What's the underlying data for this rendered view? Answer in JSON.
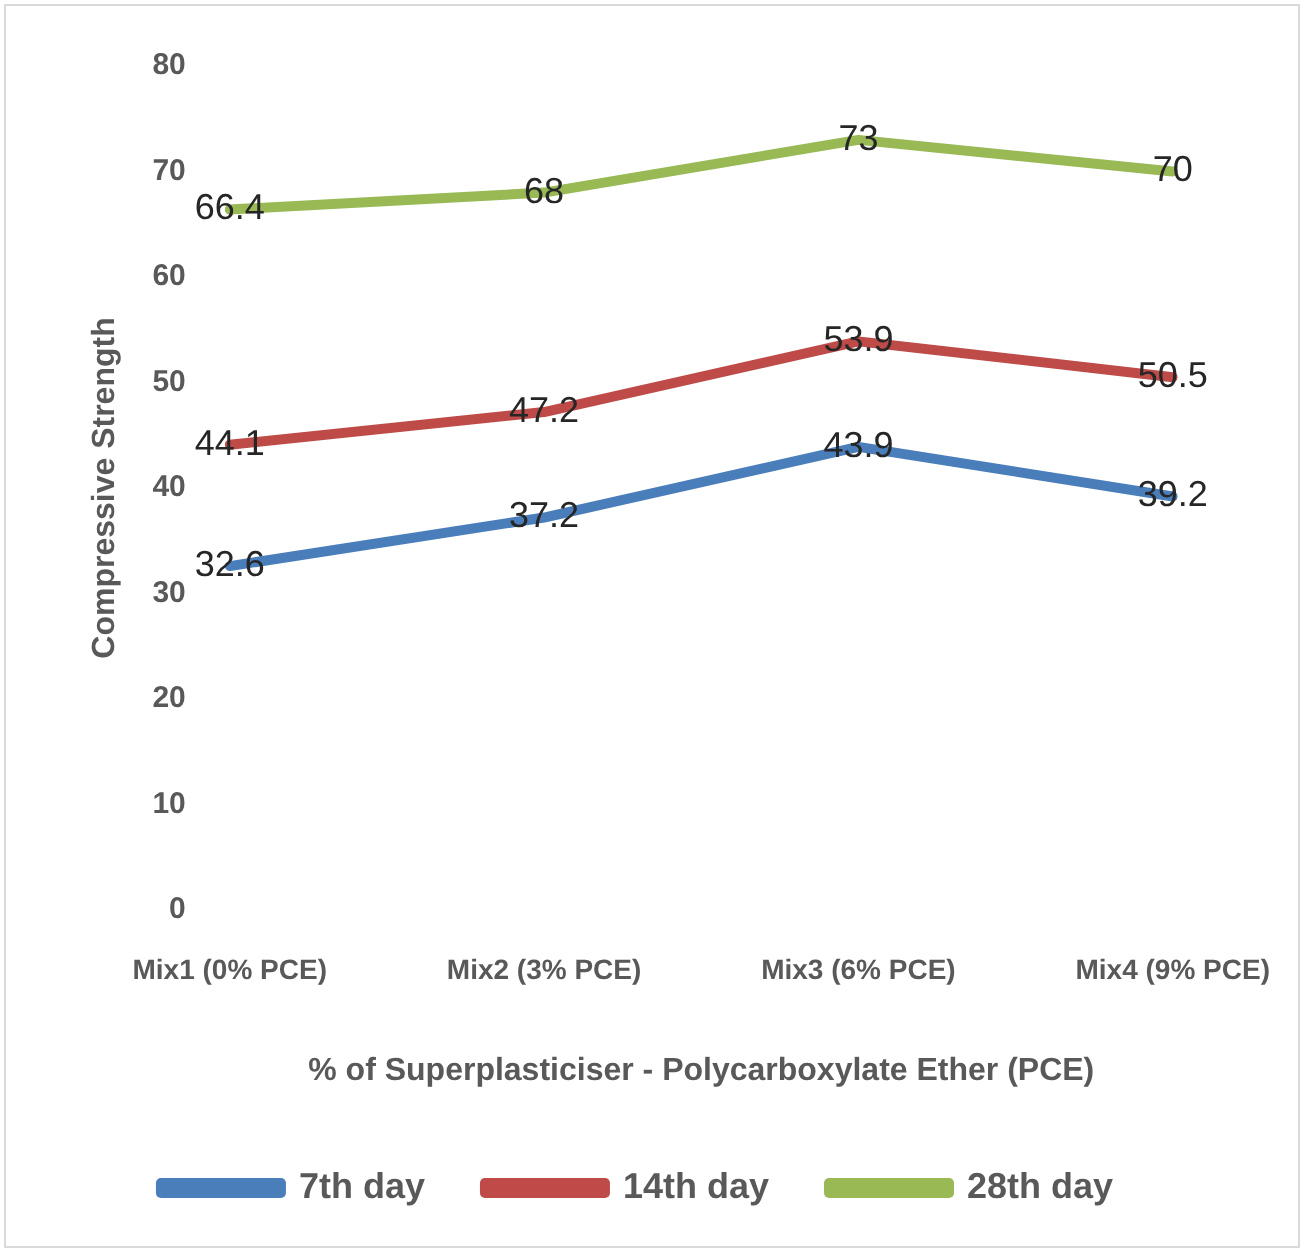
{
  "chart_data": {
    "type": "line",
    "xlabel": "% of Superplasticiser - Polycarboxylate Ether (PCE)",
    "ylabel": "Compressive Strength",
    "categories": [
      "Mix1 (0% PCE)",
      "Mix2 (3% PCE)",
      "Mix3 (6% PCE)",
      "Mix4 (9% PCE)"
    ],
    "series": [
      {
        "name": "7th day",
        "color": "#4a7ebb",
        "values": [
          32.6,
          37.2,
          43.9,
          39.2
        ]
      },
      {
        "name": "14th day",
        "color": "#be4b48",
        "values": [
          44.1,
          47.2,
          53.9,
          50.5
        ]
      },
      {
        "name": "28th day",
        "color": "#98b954",
        "values": [
          66.4,
          68,
          73,
          70
        ]
      }
    ],
    "ylim": [
      0,
      80
    ],
    "yticks": [
      0,
      10,
      20,
      30,
      40,
      50,
      60,
      70,
      80
    ],
    "grid": false,
    "legend": "bottom",
    "data_labels": true,
    "marker": "none",
    "line_style": "solid"
  }
}
